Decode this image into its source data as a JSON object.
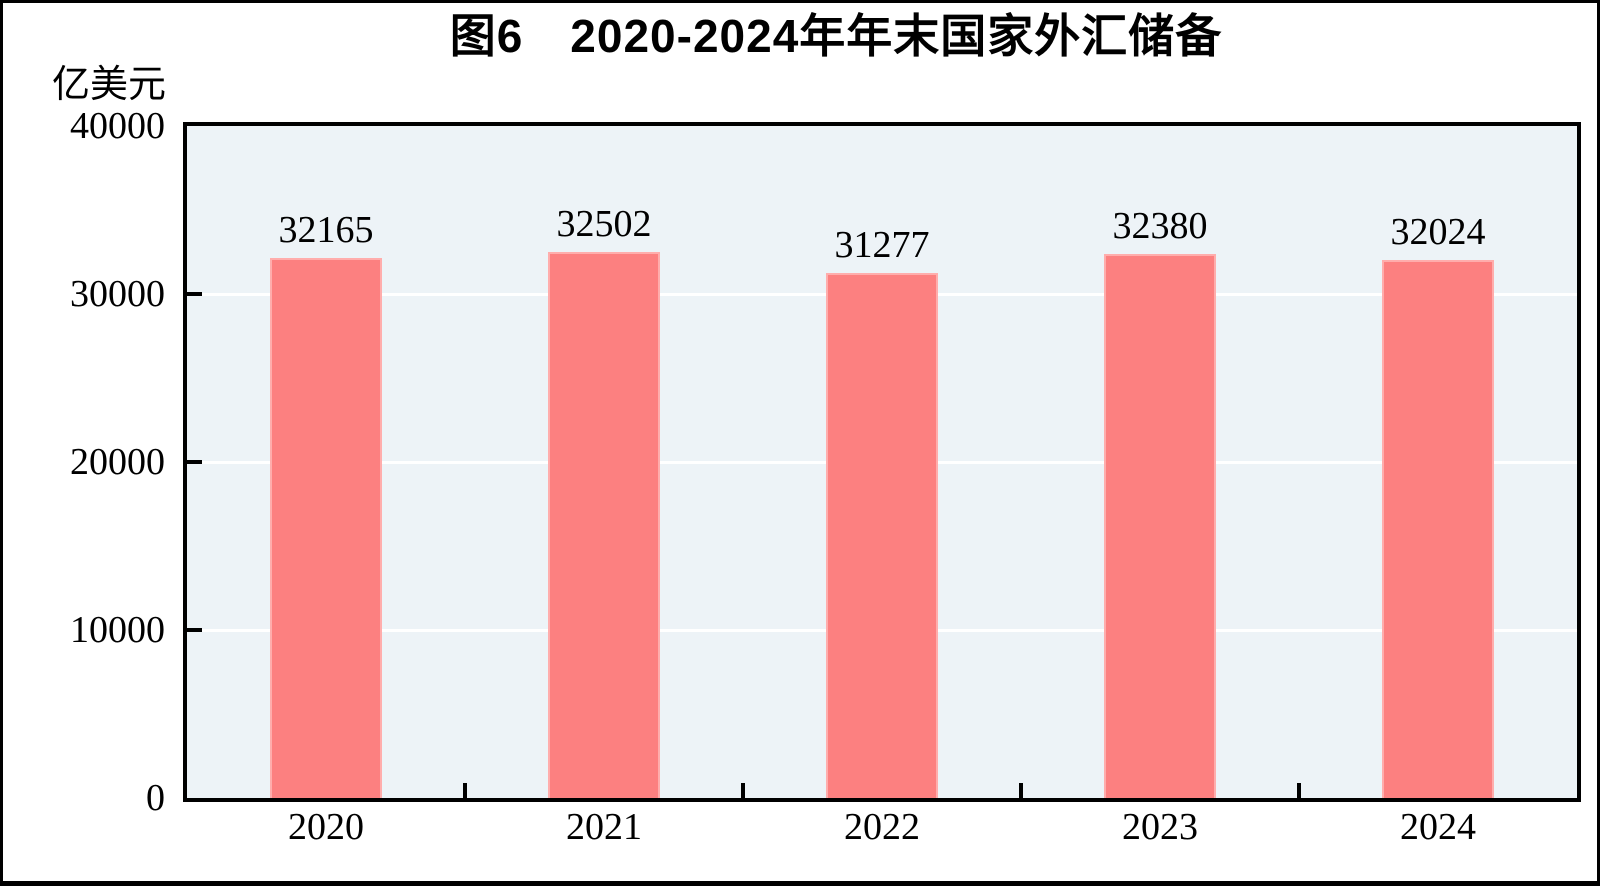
{
  "figure": {
    "title": "图6　2020-2024年年末国家外汇储备",
    "y_unit": "亿美元"
  },
  "chart_data": {
    "type": "bar",
    "title": "图6　2020-2024年年末国家外汇储备",
    "categories": [
      "2020",
      "2021",
      "2022",
      "2023",
      "2024"
    ],
    "values": [
      32165,
      32502,
      31277,
      32380,
      32024
    ],
    "data_labels": [
      "32165",
      "32502",
      "31277",
      "32380",
      "32024"
    ],
    "xlabel": "",
    "ylabel": "亿美元",
    "ylim": [
      0,
      40000
    ],
    "yticks": [
      0,
      10000,
      20000,
      30000,
      40000
    ],
    "ytick_labels": [
      "0",
      "10000",
      "20000",
      "30000",
      "40000"
    ],
    "grid": "horizontal",
    "legend_position": "none",
    "colors": {
      "bar_fill": "#fc8080",
      "bar_edge": "#ffadac",
      "plot_background": "#edf3f7",
      "gridline": "#ffffff",
      "axis": "#000000",
      "text": "#000000"
    }
  }
}
